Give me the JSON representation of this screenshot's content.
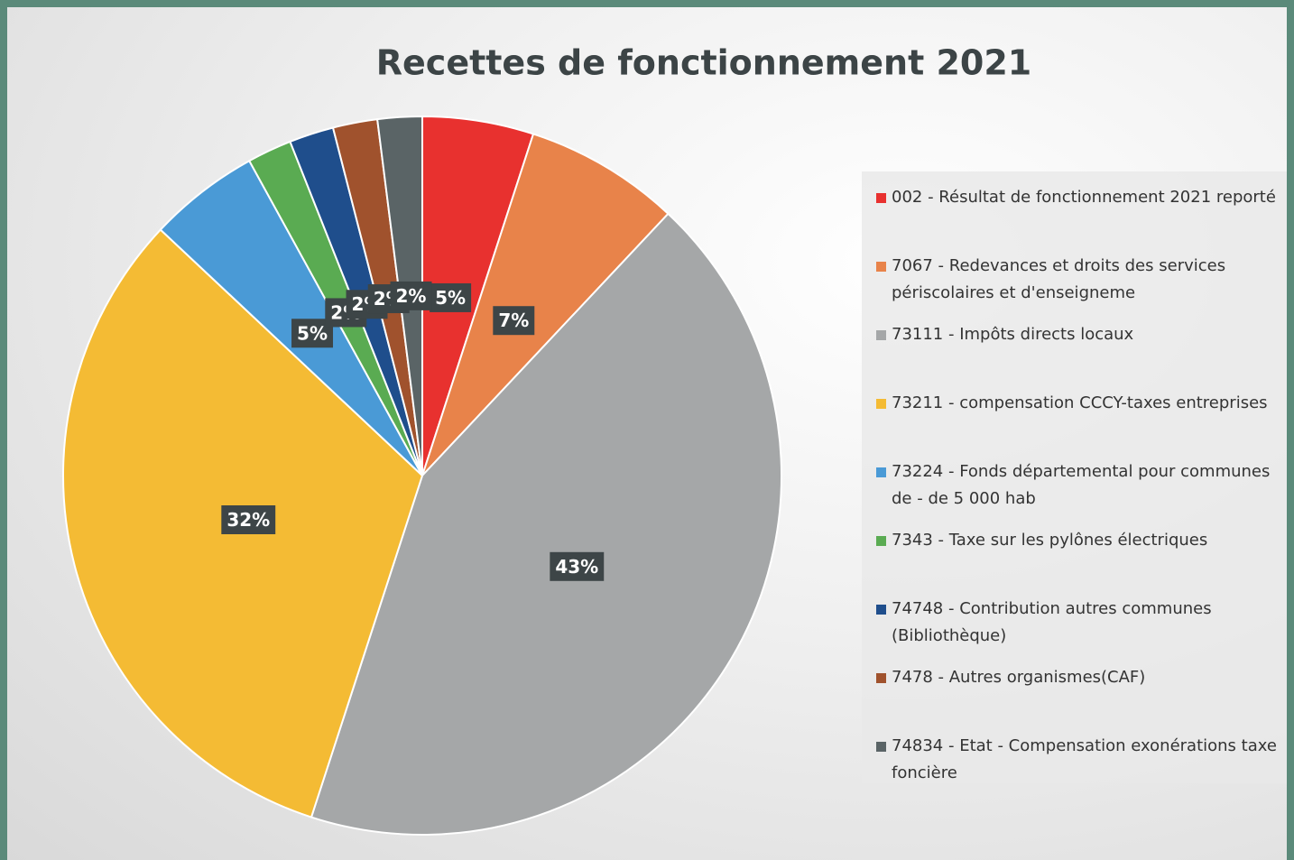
{
  "chart_data": {
    "type": "pie",
    "title": "Recettes de fonctionnement 2021",
    "categories": [
      "002 - Résultat de fonctionnement 2021 reporté",
      "7067 - Redevances et droits des services périscolaires et d'enseigneme",
      "73111 - Impôts directs locaux",
      "73211 - compensation CCCY-taxes entreprises",
      "73224 - Fonds départemental  pour communes de - de 5 000 hab",
      "7343 - Taxe sur les pylônes électriques",
      "74748 - Contribution autres communes (Bibliothèque)",
      "7478 - Autres organismes(CAF)",
      "74834 - Etat - Compensation   exonérations taxe foncière"
    ],
    "values": [
      5,
      7,
      43,
      32,
      5,
      2,
      2,
      2,
      2
    ],
    "value_labels": [
      "5%",
      "7%",
      "43%",
      "32%",
      "5%",
      "2%",
      "2%",
      "2%",
      "2%"
    ],
    "colors": [
      "#e8312f",
      "#e8834a",
      "#a5a7a8",
      "#f4bb34",
      "#4a9ad6",
      "#5aab52",
      "#1f4e8c",
      "#a0522d",
      "#5a6466"
    ],
    "legend": "right"
  }
}
